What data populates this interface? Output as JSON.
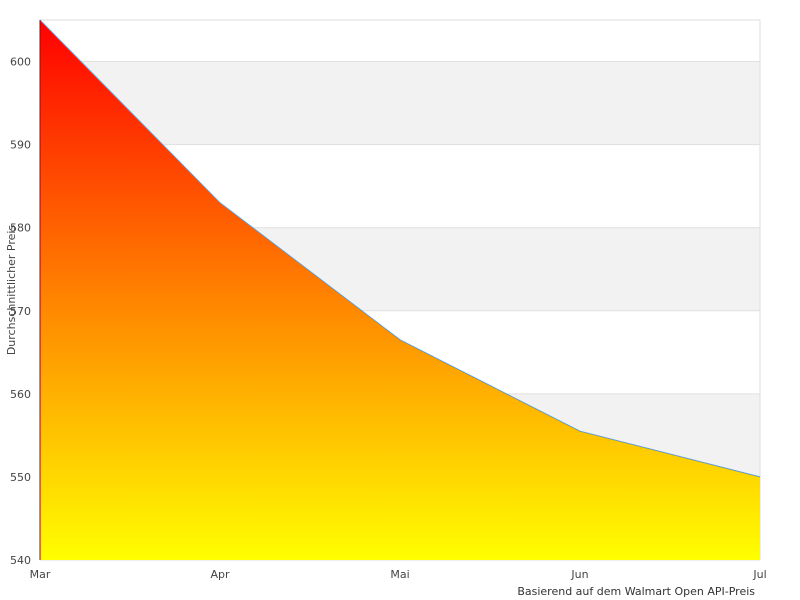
{
  "chart_data": {
    "type": "area",
    "categories": [
      "Mar",
      "Apr",
      "Mai",
      "Jun",
      "Jul"
    ],
    "values": [
      605,
      583,
      566.5,
      555.5,
      550
    ],
    "ylabel": "Durchschnittlicher Preis",
    "xlabel": "",
    "footnote": "Basierend auf dem Walmart Open API-Preis",
    "ylim": [
      540,
      605
    ],
    "yticks": [
      540,
      550,
      560,
      570,
      580,
      590,
      600
    ],
    "grid": "alternating horizontal bands",
    "fill_gradient": {
      "top": "#ff0000",
      "bottom": "#ffff00"
    },
    "line_color": "#5b9bd5"
  }
}
